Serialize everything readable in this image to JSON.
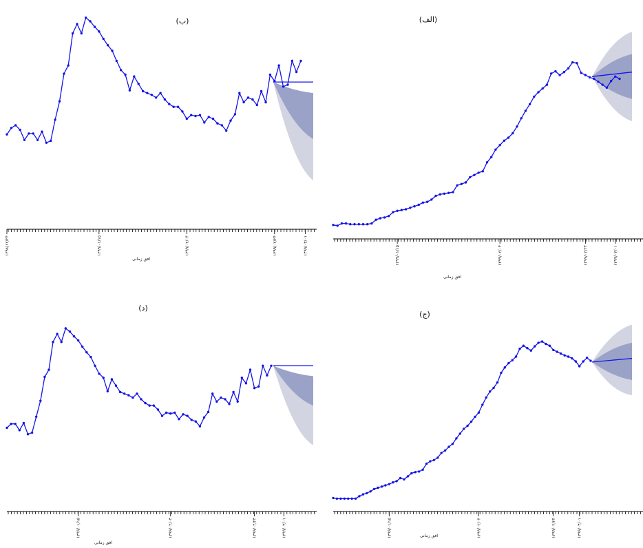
{
  "chart_data": [
    {
      "id": "panel-alef",
      "type": "line",
      "title": "(الف)",
      "xlabel": "افق زمانی",
      "tick_labels": [
        "۱۳۹۹/۰۱/۱۵",
        "۱۳۹۹/۰۲/۰۴",
        "۱۳۹۹/۰۲/۲۴",
        "۱۳۹۹/۰۳/۰۱"
      ],
      "tick_index": [
        15,
        39,
        59,
        66
      ],
      "series": [
        {
          "values": [
            3,
            2,
            5,
            5,
            4,
            4,
            4,
            4,
            4,
            5,
            10,
            12,
            13,
            15,
            20,
            22,
            23,
            24,
            26,
            28,
            30,
            33,
            34,
            37,
            42,
            44,
            45,
            46,
            47,
            56,
            58,
            60,
            67,
            70,
            73,
            75,
            87,
            94,
            104,
            110,
            116,
            120,
            126,
            135,
            146,
            156,
            165,
            175,
            181,
            186,
            191,
            206,
            209,
            204,
            208,
            213,
            221,
            220,
            207,
            204,
            201,
            199,
            195,
            191,
            187,
            196,
            202,
            199
          ]
        }
      ],
      "forecast": {
        "values": [
          202,
          208
        ],
        "inner": [
          [
            202,
            172
          ],
          [
            202,
            232
          ]
        ],
        "outer": [
          [
            202,
            142
          ],
          [
            202,
            262
          ]
        ]
      },
      "ylim": [
        0,
        240
      ],
      "colors": {
        "line": "#1515e6",
        "inner_band": "#9aa2c8",
        "outer_band": "#d3d4e2"
      }
    },
    {
      "id": "panel-be",
      "type": "line",
      "title": "(ب)",
      "xlabel": "افق زمانی",
      "tick_labels": [
        "۱۳۹۸/۱۲/۲۴",
        "۱۳۹۹/۰۱/۱۵",
        "۱۳۹۹/۰۲/۰۴",
        "۱۳۹۹/۰۲/۲۴",
        "۱۳۹۹/۰۳/۰۱"
      ],
      "tick_index": [
        0,
        21,
        41,
        61,
        68
      ],
      "series": [
        {
          "values": [
            0.9,
            0.97,
            1.0,
            0.95,
            0.84,
            0.91,
            0.91,
            0.84,
            0.93,
            0.81,
            0.83,
            1.06,
            1.26,
            1.56,
            1.65,
            2.0,
            2.1,
            2.0,
            2.17,
            2.13,
            2.07,
            2.02,
            1.94,
            1.87,
            1.81,
            1.7,
            1.6,
            1.55,
            1.38,
            1.53,
            1.45,
            1.37,
            1.35,
            1.33,
            1.3,
            1.35,
            1.28,
            1.23,
            1.2,
            1.2,
            1.15,
            1.07,
            1.11,
            1.1,
            1.11,
            1.03,
            1.09,
            1.07,
            1.02,
            1.0,
            0.94,
            1.05,
            1.12,
            1.35,
            1.25,
            1.3,
            1.28,
            1.22,
            1.37,
            1.25,
            1.55,
            1.48,
            1.65,
            1.42,
            1.44,
            1.7,
            1.58,
            1.7
          ]
        }
      ],
      "forecast": {
        "values": [
          1.47,
          1.47
        ],
        "inner": [
          [
            1.47,
            1.35
          ],
          [
            1.47,
            0.85
          ]
        ],
        "outer": [
          [
            1.47,
            1.2
          ],
          [
            1.47,
            0.4
          ]
        ]
      },
      "ylim": [
        0.4,
        2.25
      ],
      "colors": {
        "line": "#1515e6",
        "inner_band": "#9aa2c8",
        "outer_band": "#d3d4e2"
      }
    },
    {
      "id": "panel-jim",
      "type": "line",
      "title": "(ج)",
      "xlabel": "افق زمانی",
      "tick_labels": [
        "۱۳۹۹/۰۱/۱۵",
        "۱۳۹۹/۰۲/۰۴",
        "۱۳۹۹/۰۲/۲۴",
        "۱۳۹۹/۰۳/۰۱"
      ],
      "tick_index": [
        15,
        39,
        59,
        66
      ],
      "series": [
        {
          "values": [
            3,
            2,
            2,
            2,
            2,
            2,
            2,
            6,
            9,
            11,
            14,
            18,
            20,
            22,
            24,
            26,
            29,
            31,
            36,
            34,
            39,
            44,
            46,
            47,
            50,
            60,
            64,
            66,
            70,
            78,
            82,
            88,
            93,
            102,
            110,
            118,
            123,
            130,
            138,
            145,
            158,
            170,
            180,
            186,
            195,
            211,
            220,
            227,
            232,
            238,
            251,
            256,
            252,
            248,
            255,
            261,
            263,
            259,
            256,
            249,
            246,
            243,
            240,
            238,
            235,
            230,
            222,
            230,
            236,
            231
          ]
        }
      ],
      "forecast": {
        "values": [
          229,
          235
        ],
        "inner": [
          [
            229,
            199
          ],
          [
            229,
            261
          ]
        ],
        "outer": [
          [
            229,
            169
          ],
          [
            229,
            291
          ]
        ]
      },
      "ylim": [
        0,
        270
      ],
      "colors": {
        "line": "#1515e6",
        "inner_band": "#9aa2c8",
        "outer_band": "#d3d4e2"
      }
    },
    {
      "id": "panel-dal",
      "type": "line",
      "title": "(د)",
      "xlabel": "افق زمانی",
      "tick_labels": [
        "۱۳۹۹/۰۱/۱۵",
        "۱۳۹۹/۰۲/۰۴",
        "۱۳۹۹/۰۲/۲۴",
        "۱۳۹۹/۰۳/۰۱"
      ],
      "tick_index": [
        17,
        39,
        59,
        66
      ],
      "series": [
        {
          "values": [
            0.92,
            0.97,
            0.97,
            0.89,
            0.98,
            0.84,
            0.86,
            1.06,
            1.26,
            1.56,
            1.65,
            2.0,
            2.1,
            2.0,
            2.17,
            2.13,
            2.07,
            2.02,
            1.94,
            1.87,
            1.81,
            1.7,
            1.6,
            1.55,
            1.38,
            1.53,
            1.45,
            1.37,
            1.35,
            1.33,
            1.3,
            1.35,
            1.28,
            1.23,
            1.2,
            1.2,
            1.15,
            1.07,
            1.11,
            1.1,
            1.11,
            1.03,
            1.09,
            1.07,
            1.02,
            1.0,
            0.94,
            1.05,
            1.12,
            1.35,
            1.25,
            1.3,
            1.28,
            1.22,
            1.37,
            1.25,
            1.55,
            1.48,
            1.65,
            1.42,
            1.44,
            1.7,
            1.58,
            1.7
          ]
        }
      ],
      "forecast": {
        "values": [
          1.7,
          1.7
        ],
        "inner": [
          [
            1.7,
            1.57
          ],
          [
            1.7,
            1.2
          ]
        ],
        "outer": [
          [
            1.7,
            1.45
          ],
          [
            1.7,
            0.7
          ]
        ]
      },
      "ylim": [
        0.5,
        2.3
      ],
      "colors": {
        "line": "#1515e6",
        "inner_band": "#9aa2c8",
        "outer_band": "#d3d4e2"
      }
    }
  ]
}
